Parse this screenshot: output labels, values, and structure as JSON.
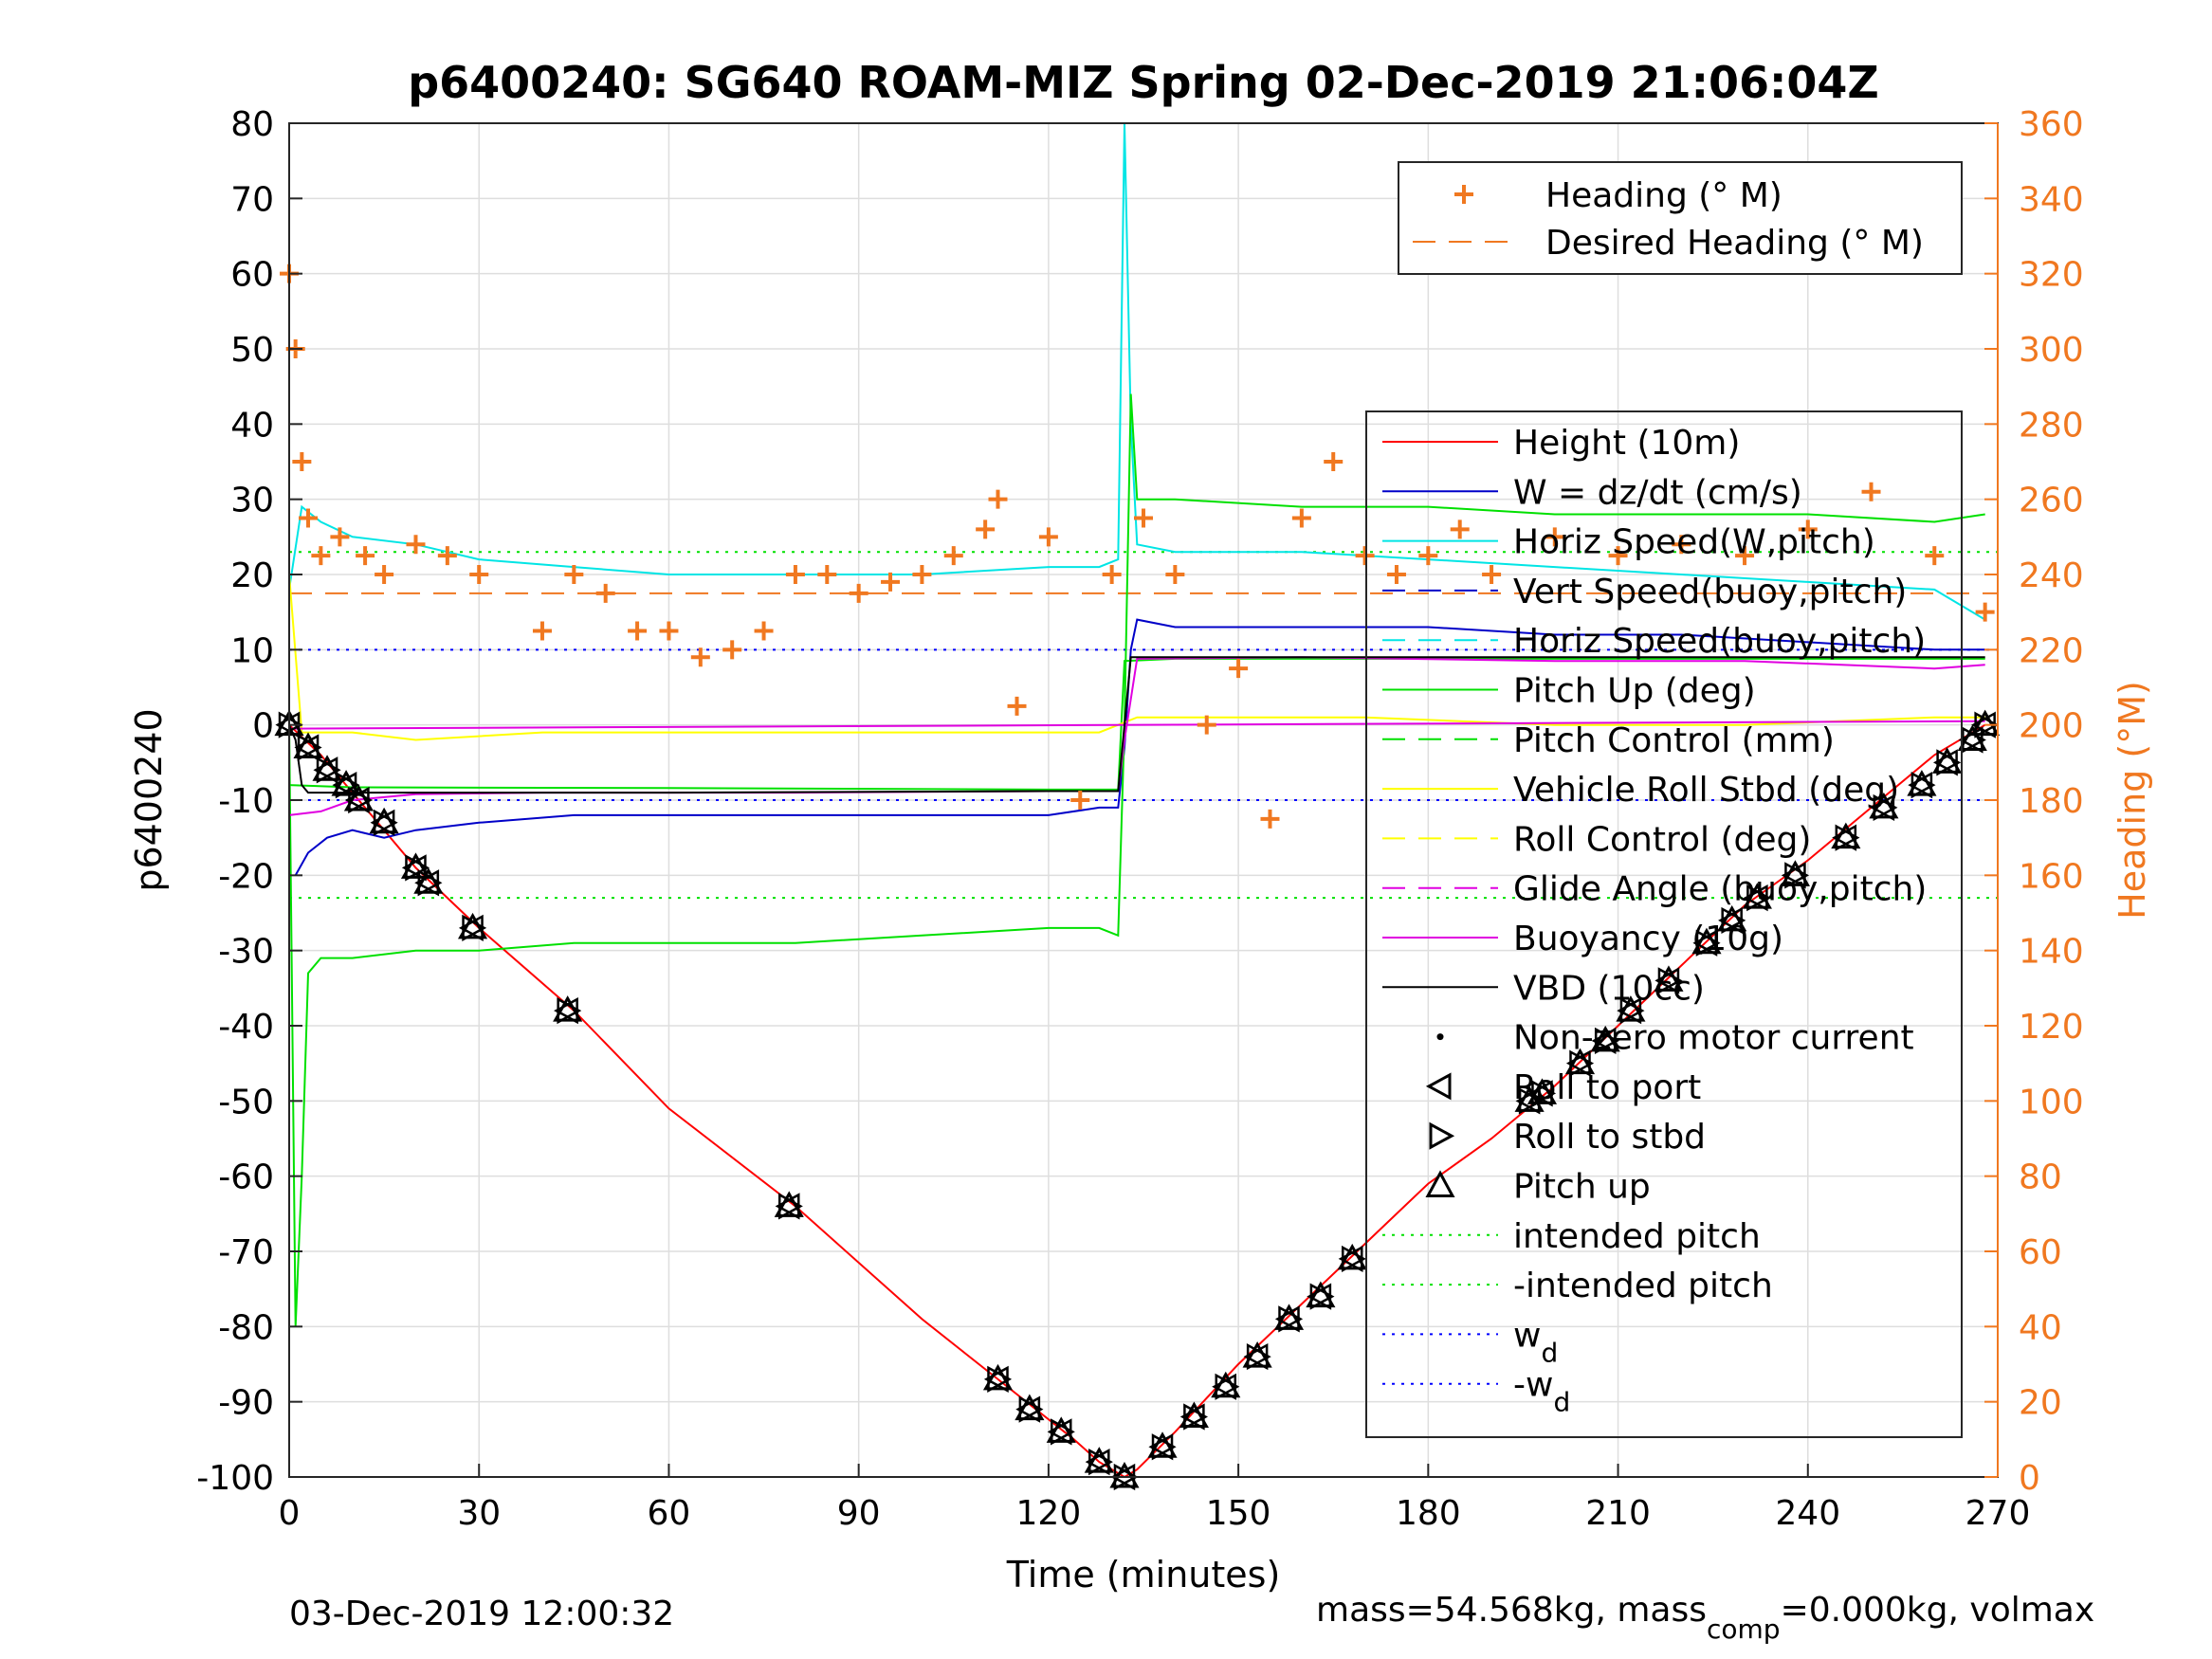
{
  "chart_data": {
    "type": "line",
    "title": "p6400240: SG640 ROAM-MIZ Spring 02-Dec-2019 21:06:04Z",
    "xlabel": "Time (minutes)",
    "ylabel": "p6400240",
    "ylabel_right": "Heading (°M)",
    "xlim": [
      0,
      270
    ],
    "ylim": [
      -100,
      80
    ],
    "ylim_right": [
      0,
      360
    ],
    "xticks": [
      0,
      30,
      60,
      90,
      120,
      150,
      180,
      210,
      240,
      270
    ],
    "yticks": [
      80,
      70,
      60,
      50,
      40,
      30,
      20,
      10,
      0,
      -10,
      -20,
      -30,
      -40,
      -50,
      -60,
      -70,
      -80,
      -90,
      -100
    ],
    "yticks_right": [
      360,
      340,
      320,
      300,
      280,
      260,
      240,
      220,
      200,
      180,
      160,
      140,
      120,
      100,
      80,
      60,
      40,
      20,
      0
    ],
    "grid": true,
    "right_axis_color": "#f07820",
    "legend_top": {
      "placement": "top-right",
      "entries": [
        {
          "label": "Heading (° M)",
          "color": "#f07820",
          "style": "plus"
        },
        {
          "label": "Desired Heading (° M)",
          "color": "#f07820",
          "style": "dashed"
        }
      ]
    },
    "legend_main": {
      "placement": "right",
      "entries": [
        {
          "label": "Height (10m)",
          "color": "#ff0000",
          "style": "solid"
        },
        {
          "label": "W = dz/dt (cm/s)",
          "color": "#0000c8",
          "style": "solid"
        },
        {
          "label": "Horiz Speed(W,pitch)",
          "color": "#00e5e5",
          "style": "solid"
        },
        {
          "label": "Vert Speed(buoy,pitch)",
          "color": "#0000c8",
          "style": "dashed"
        },
        {
          "label": "Horiz Speed(buoy,pitch)",
          "color": "#00e5e5",
          "style": "dashed"
        },
        {
          "label": "Pitch Up (deg)",
          "color": "#00e000",
          "style": "solid"
        },
        {
          "label": "Pitch Control (mm)",
          "color": "#00e000",
          "style": "dashed"
        },
        {
          "label": "Vehicle Roll Stbd (deg)",
          "color": "#ffff00",
          "style": "solid"
        },
        {
          "label": "Roll Control (deg)",
          "color": "#ffff00",
          "style": "dashed"
        },
        {
          "label": "Glide Angle (buoy,pitch)",
          "color": "#e000e0",
          "style": "dashed"
        },
        {
          "label": "Buoyancy (10g)",
          "color": "#e000e0",
          "style": "solid"
        },
        {
          "label": "VBD (10cc)",
          "color": "#000000",
          "style": "solid"
        },
        {
          "label": "Non-zero motor current",
          "color": "#000000",
          "style": "dot"
        },
        {
          "label": "Roll to port",
          "color": "#000000",
          "style": "tri-left"
        },
        {
          "label": "Roll to stbd",
          "color": "#000000",
          "style": "tri-right"
        },
        {
          "label": "Pitch up",
          "color": "#000000",
          "style": "tri-up"
        },
        {
          "label": "intended pitch",
          "color": "#00e000",
          "style": "dotted"
        },
        {
          "label": "-intended pitch",
          "color": "#00e000",
          "style": "dotted"
        },
        {
          "label": "w",
          "sub": "d",
          "color": "#0000ff",
          "style": "dotted"
        },
        {
          "label": "-w",
          "sub": "d",
          "color": "#0000ff",
          "style": "dotted"
        }
      ]
    },
    "reference_lines": {
      "intended_pitch": [
        23,
        -23
      ],
      "w_d": [
        10,
        -10
      ],
      "desired_heading_right": 235
    },
    "series": [
      {
        "name": "Height (10m)",
        "color": "#ff0000",
        "x": [
          0,
          5,
          10,
          15,
          20,
          30,
          45,
          60,
          80,
          100,
          112,
          118,
          124,
          128,
          132,
          134,
          140,
          150,
          160,
          170,
          180,
          190,
          200,
          210,
          220,
          230,
          240,
          250,
          260,
          268
        ],
        "y": [
          0,
          -4,
          -9,
          -14,
          -19,
          -27,
          -38,
          -51,
          -64,
          -79,
          -87,
          -91,
          -95,
          -98,
          -100,
          -99,
          -94,
          -85,
          -77,
          -69,
          -61,
          -55,
          -48,
          -40,
          -32,
          -24,
          -18,
          -11,
          -4,
          0
        ]
      },
      {
        "name": "W = dz/dt (cm/s)",
        "color": "#0000c8",
        "x": [
          1,
          3,
          6,
          10,
          15,
          20,
          30,
          45,
          60,
          80,
          100,
          120,
          128,
          131,
          132,
          133,
          134,
          140,
          160,
          180,
          200,
          220,
          240,
          260,
          268
        ],
        "y": [
          -20,
          -17,
          -15,
          -14,
          -15,
          -14,
          -13,
          -12,
          -12,
          -12,
          -12,
          -12,
          -11,
          -11,
          -3,
          10,
          14,
          13,
          13,
          13,
          12,
          12,
          11,
          10,
          10
        ]
      },
      {
        "name": "Horiz Speed(W,pitch)",
        "color": "#00e5e5",
        "x": [
          0,
          2,
          5,
          10,
          20,
          30,
          45,
          60,
          80,
          100,
          120,
          128,
          131,
          132,
          133,
          134,
          140,
          160,
          180,
          200,
          220,
          240,
          260,
          268
        ],
        "y": [
          18,
          29,
          27,
          25,
          24,
          22,
          21,
          20,
          20,
          20,
          21,
          21,
          22,
          80,
          40,
          24,
          23,
          23,
          22,
          21,
          20,
          19,
          18,
          14
        ]
      },
      {
        "name": "Pitch Up (deg)",
        "color": "#00e000",
        "x": [
          0,
          1,
          2,
          3,
          5,
          10,
          20,
          30,
          45,
          60,
          80,
          100,
          120,
          128,
          131,
          132,
          133,
          134,
          140,
          160,
          180,
          200,
          220,
          240,
          260,
          268
        ],
        "y": [
          0,
          -80,
          -60,
          -33,
          -31,
          -31,
          -30,
          -30,
          -29,
          -29,
          -29,
          -28,
          -27,
          -27,
          -28,
          0,
          44,
          30,
          30,
          29,
          29,
          28,
          28,
          28,
          27,
          28
        ]
      },
      {
        "name": "Pitch Control (mm)",
        "color": "#00e000",
        "x": [
          0,
          10,
          60,
          120,
          131,
          132,
          140,
          200,
          268
        ],
        "y": [
          -8,
          -8.3,
          -8.4,
          -8.6,
          -8.6,
          8.5,
          8.8,
          8.8,
          8.8
        ]
      },
      {
        "name": "Vehicle Roll Stbd (deg)",
        "color": "#ffff00",
        "x": [
          0,
          2,
          10,
          20,
          40,
          60,
          80,
          100,
          118,
          128,
          131,
          134,
          150,
          170,
          200,
          230,
          260,
          268
        ],
        "y": [
          20,
          -1,
          -1,
          -2,
          -1,
          -1,
          -1,
          -1,
          -1,
          -1,
          0,
          1,
          1,
          1,
          0,
          0,
          1,
          1
        ]
      },
      {
        "name": "Glide Angle (buoy,pitch)",
        "color": "#e000e0",
        "x": [
          0,
          268
        ],
        "y": [
          -0.5,
          0.5
        ]
      },
      {
        "name": "Buoyancy (10g)",
        "color": "#e000e0",
        "x": [
          0,
          5,
          10,
          20,
          40,
          80,
          120,
          131,
          132,
          134,
          160,
          200,
          230,
          260,
          268
        ],
        "y": [
          -12,
          -11.5,
          -10,
          -9.2,
          -9,
          -9,
          -8.8,
          -8.8,
          -2,
          8.8,
          9,
          8.5,
          8.5,
          7.5,
          8
        ]
      },
      {
        "name": "VBD (10cc)",
        "color": "#000000",
        "x": [
          0,
          1,
          2,
          3,
          10,
          60,
          120,
          131,
          132,
          133,
          134,
          200,
          268
        ],
        "y": [
          0,
          -2,
          -8,
          -9,
          -9,
          -9,
          -8.8,
          -8.8,
          0,
          9,
          9,
          9,
          9
        ]
      },
      {
        "name": "Heading (° M)",
        "color": "#f07820",
        "axis": "right",
        "x": [
          0,
          1,
          2,
          3,
          5,
          8,
          12,
          15,
          20,
          25,
          30,
          40,
          45,
          50,
          55,
          60,
          65,
          70,
          75,
          80,
          85,
          90,
          95,
          100,
          105,
          110,
          112,
          115,
          120,
          125,
          130,
          135,
          140,
          145,
          150,
          155,
          160,
          165,
          170,
          175,
          180,
          185,
          190,
          200,
          210,
          220,
          230,
          240,
          250,
          260,
          268
        ],
        "y": [
          320,
          300,
          270,
          255,
          245,
          250,
          245,
          240,
          248,
          245,
          240,
          225,
          240,
          235,
          225,
          225,
          218,
          220,
          225,
          240,
          240,
          235,
          238,
          240,
          245,
          252,
          260,
          205,
          250,
          180,
          240,
          255,
          240,
          200,
          215,
          175,
          255,
          270,
          245,
          240,
          245,
          252,
          240,
          250,
          245,
          248,
          245,
          252,
          262,
          245,
          230
        ]
      }
    ],
    "markers": {
      "tri_up": [
        [
          0,
          0
        ],
        [
          3,
          -3
        ],
        [
          6,
          -6
        ],
        [
          9,
          -8
        ],
        [
          11,
          -10
        ],
        [
          15,
          -13
        ],
        [
          20,
          -19
        ],
        [
          22,
          -21
        ],
        [
          29,
          -27
        ],
        [
          44,
          -38
        ],
        [
          79,
          -64
        ],
        [
          112,
          -87
        ],
        [
          117,
          -91
        ],
        [
          122,
          -94
        ],
        [
          128,
          -98
        ],
        [
          132,
          -100
        ],
        [
          138,
          -96
        ],
        [
          143,
          -92
        ],
        [
          148,
          -88
        ],
        [
          153,
          -84
        ],
        [
          158,
          -79
        ],
        [
          163,
          -76
        ],
        [
          168,
          -71
        ],
        [
          196,
          -50
        ],
        [
          198,
          -49
        ],
        [
          204,
          -45
        ],
        [
          208,
          -42
        ],
        [
          212,
          -38
        ],
        [
          218,
          -34
        ],
        [
          224,
          -29
        ],
        [
          228,
          -26
        ],
        [
          232,
          -23
        ],
        [
          238,
          -20
        ],
        [
          246,
          -15
        ],
        [
          252,
          -11
        ],
        [
          258,
          -8
        ],
        [
          262,
          -5
        ],
        [
          266,
          -2
        ],
        [
          268,
          0
        ]
      ]
    }
  },
  "footer": {
    "date": "03-Dec-2019 12:00:32",
    "mass_prefix": "mass=54.568kg, mass",
    "mass_sub": "comp",
    "mass_suffix": "=0.000kg, volmax"
  }
}
